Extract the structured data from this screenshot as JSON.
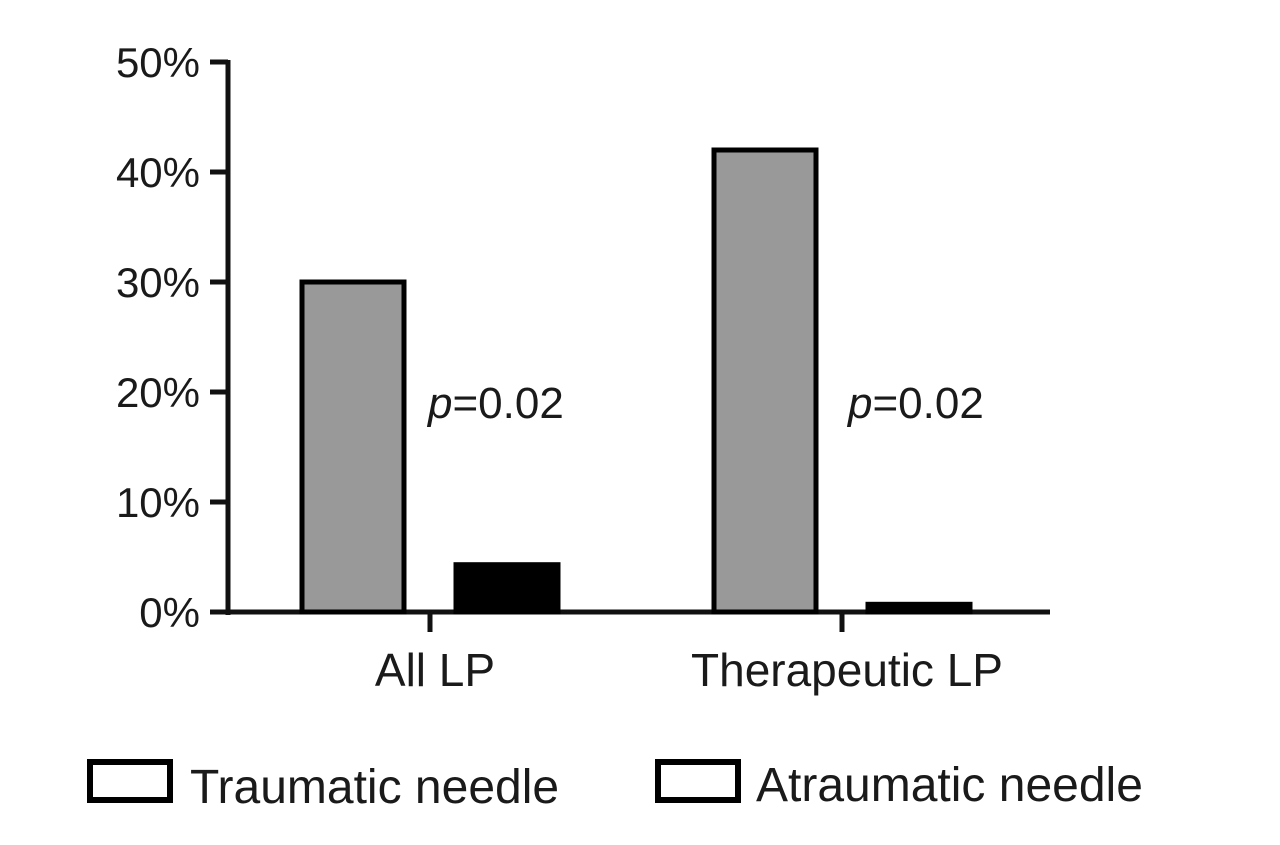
{
  "chart_data": {
    "type": "bar",
    "categories": [
      "All LP",
      "Therapeutic LP"
    ],
    "series": [
      {
        "name": "Traumatic needle",
        "values": [
          30,
          42
        ],
        "color": "#999999"
      },
      {
        "name": "Atraumatic needle",
        "values": [
          4.3,
          0.7
        ],
        "color": "#000000"
      }
    ],
    "ylim": [
      0,
      50
    ],
    "yticks": [
      0,
      10,
      20,
      30,
      40,
      50
    ],
    "ytick_labels": [
      "0%",
      "10%",
      "20%",
      "30%",
      "40%",
      "50%"
    ],
    "annotations": [
      {
        "category": "All LP",
        "italic": "p",
        "rest": "=0.02"
      },
      {
        "category": "Therapeutic LP",
        "italic": "p",
        "rest": "=0.02"
      }
    ],
    "legend_position": "bottom",
    "grid": false,
    "title": "",
    "xlabel": "",
    "ylabel": ""
  }
}
